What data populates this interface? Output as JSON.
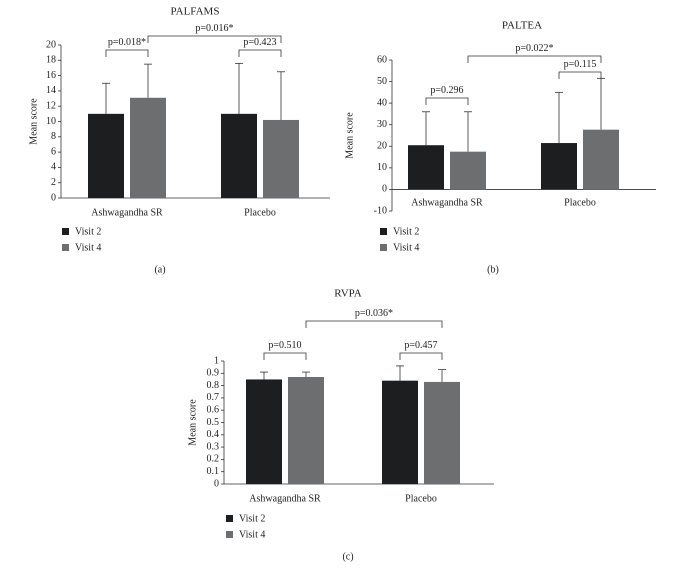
{
  "chart_data": [
    {
      "type": "bar",
      "panel_label": "(a)",
      "title": "PALFAMS",
      "ylabel": "Mean score",
      "xlabel": "",
      "ylim": [
        0,
        20
      ],
      "ytick_labels": [
        "0",
        "2",
        "4",
        "6",
        "8",
        "10",
        "12",
        "14",
        "16",
        "18",
        "20"
      ],
      "categories": [
        "Ashwagandha SR",
        "Placebo"
      ],
      "series": [
        {
          "name": "Visit 2",
          "color": "#1d1e20",
          "values": [
            11.0,
            11.0
          ],
          "error_upper": [
            15.0,
            17.6
          ]
        },
        {
          "name": "Visit 4",
          "color": "#6d6e70",
          "values": [
            13.1,
            10.2
          ],
          "error_upper": [
            17.5,
            16.5
          ]
        }
      ],
      "annotations": {
        "group_left": "p=0.018*",
        "group_right": "p=0.423",
        "between": "p=0.016*"
      },
      "legend_position": "bottom-left"
    },
    {
      "type": "bar",
      "panel_label": "(b)",
      "title": "PALTEA",
      "ylabel": "Mean score",
      "xlabel": "",
      "ylim": [
        -10,
        60
      ],
      "ytick_labels": [
        "-10",
        "0",
        "10",
        "20",
        "30",
        "40",
        "50",
        "60"
      ],
      "categories": [
        "Ashwagandha SR",
        "Placebo"
      ],
      "series": [
        {
          "name": "Visit 2",
          "color": "#1d1e20",
          "values": [
            20.5,
            21.5
          ],
          "error_upper": [
            36.0,
            45.0
          ]
        },
        {
          "name": "Visit 4",
          "color": "#6d6e70",
          "values": [
            17.5,
            27.7
          ],
          "error_upper": [
            36.0,
            51.5
          ]
        }
      ],
      "annotations": {
        "group_left": "p=0.296",
        "group_right": "p=0.115",
        "between": "p=0.022*"
      },
      "legend_position": "bottom-left"
    },
    {
      "type": "bar",
      "panel_label": "(c)",
      "title": "RVPA",
      "ylabel": "Mean score",
      "xlabel": "",
      "ylim": [
        0,
        1
      ],
      "ytick_labels": [
        "0",
        "0.1",
        "0.2",
        "0.3",
        "0.4",
        "0.5",
        "0.6",
        "0.7",
        "0.8",
        "0.9",
        "1"
      ],
      "categories": [
        "Ashwagandha SR",
        "Placebo"
      ],
      "series": [
        {
          "name": "Visit 2",
          "color": "#1d1e20",
          "values": [
            0.85,
            0.84
          ],
          "error_upper": [
            0.91,
            0.96
          ]
        },
        {
          "name": "Visit 4",
          "color": "#6d6e70",
          "values": [
            0.87,
            0.83
          ],
          "error_upper": [
            0.91,
            0.93
          ]
        }
      ],
      "annotations": {
        "group_left": "p=0.510",
        "group_right": "p=0.457",
        "between": "p=0.036*"
      },
      "legend_position": "bottom-left"
    }
  ]
}
